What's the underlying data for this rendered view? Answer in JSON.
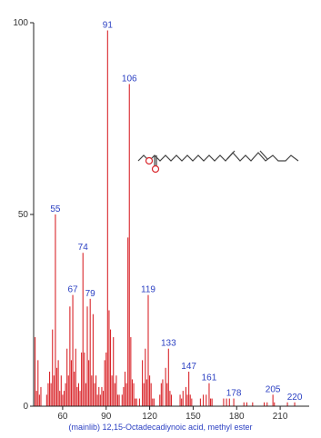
{
  "colors": {
    "peak": "#d9262b",
    "label": "#2a3fc2",
    "axis": "#222222",
    "structure": "#444444",
    "oxygen": "#d9262b"
  },
  "caption": "(mainlib) 12,15-Octadecadiynoic acid, methyl ester",
  "chart_data": {
    "type": "bar",
    "title": "",
    "xlabel": "",
    "ylabel": "",
    "xlim": [
      40,
      230
    ],
    "ylim": [
      0,
      100
    ],
    "x_ticks": [
      60,
      90,
      120,
      150,
      180,
      210
    ],
    "y_ticks": [
      0,
      50,
      100
    ],
    "peaks": [
      {
        "x": 41,
        "y": 18
      },
      {
        "x": 42,
        "y": 4
      },
      {
        "x": 43,
        "y": 12
      },
      {
        "x": 44,
        "y": 3
      },
      {
        "x": 45,
        "y": 5
      },
      {
        "x": 49,
        "y": 3
      },
      {
        "x": 50,
        "y": 6
      },
      {
        "x": 51,
        "y": 9
      },
      {
        "x": 52,
        "y": 6
      },
      {
        "x": 53,
        "y": 20
      },
      {
        "x": 54,
        "y": 8
      },
      {
        "x": 55,
        "y": 50
      },
      {
        "x": 56,
        "y": 10
      },
      {
        "x": 57,
        "y": 12
      },
      {
        "x": 58,
        "y": 4
      },
      {
        "x": 59,
        "y": 8
      },
      {
        "x": 60,
        "y": 3
      },
      {
        "x": 61,
        "y": 4
      },
      {
        "x": 62,
        "y": 6
      },
      {
        "x": 63,
        "y": 15
      },
      {
        "x": 64,
        "y": 8
      },
      {
        "x": 65,
        "y": 26
      },
      {
        "x": 66,
        "y": 12
      },
      {
        "x": 67,
        "y": 29
      },
      {
        "x": 68,
        "y": 9
      },
      {
        "x": 69,
        "y": 15
      },
      {
        "x": 70,
        "y": 5
      },
      {
        "x": 71,
        "y": 6
      },
      {
        "x": 72,
        "y": 4
      },
      {
        "x": 73,
        "y": 14
      },
      {
        "x": 74,
        "y": 40
      },
      {
        "x": 75,
        "y": 14
      },
      {
        "x": 76,
        "y": 6
      },
      {
        "x": 77,
        "y": 26
      },
      {
        "x": 78,
        "y": 12
      },
      {
        "x": 79,
        "y": 28
      },
      {
        "x": 80,
        "y": 8
      },
      {
        "x": 81,
        "y": 24
      },
      {
        "x": 82,
        "y": 6
      },
      {
        "x": 83,
        "y": 8
      },
      {
        "x": 84,
        "y": 3
      },
      {
        "x": 85,
        "y": 5
      },
      {
        "x": 86,
        "y": 3
      },
      {
        "x": 87,
        "y": 5
      },
      {
        "x": 88,
        "y": 4
      },
      {
        "x": 89,
        "y": 12
      },
      {
        "x": 90,
        "y": 14
      },
      {
        "x": 91,
        "y": 98
      },
      {
        "x": 92,
        "y": 25
      },
      {
        "x": 93,
        "y": 20
      },
      {
        "x": 94,
        "y": 8
      },
      {
        "x": 95,
        "y": 18
      },
      {
        "x": 96,
        "y": 6
      },
      {
        "x": 97,
        "y": 8
      },
      {
        "x": 98,
        "y": 3
      },
      {
        "x": 99,
        "y": 3
      },
      {
        "x": 101,
        "y": 3
      },
      {
        "x": 102,
        "y": 5
      },
      {
        "x": 103,
        "y": 9
      },
      {
        "x": 104,
        "y": 6
      },
      {
        "x": 105,
        "y": 44
      },
      {
        "x": 106,
        "y": 84
      },
      {
        "x": 107,
        "y": 18
      },
      {
        "x": 108,
        "y": 7
      },
      {
        "x": 109,
        "y": 6
      },
      {
        "x": 110,
        "y": 2
      },
      {
        "x": 111,
        "y": 2
      },
      {
        "x": 113,
        "y": 2
      },
      {
        "x": 115,
        "y": 12
      },
      {
        "x": 116,
        "y": 6
      },
      {
        "x": 117,
        "y": 15
      },
      {
        "x": 118,
        "y": 7
      },
      {
        "x": 119,
        "y": 29
      },
      {
        "x": 120,
        "y": 8
      },
      {
        "x": 121,
        "y": 6
      },
      {
        "x": 122,
        "y": 2
      },
      {
        "x": 123,
        "y": 2
      },
      {
        "x": 127,
        "y": 3
      },
      {
        "x": 128,
        "y": 6
      },
      {
        "x": 129,
        "y": 7
      },
      {
        "x": 131,
        "y": 10
      },
      {
        "x": 132,
        "y": 6
      },
      {
        "x": 133,
        "y": 15
      },
      {
        "x": 134,
        "y": 4
      },
      {
        "x": 135,
        "y": 3
      },
      {
        "x": 141,
        "y": 3
      },
      {
        "x": 142,
        "y": 2
      },
      {
        "x": 143,
        "y": 4
      },
      {
        "x": 145,
        "y": 5
      },
      {
        "x": 146,
        "y": 3
      },
      {
        "x": 147,
        "y": 9
      },
      {
        "x": 148,
        "y": 3
      },
      {
        "x": 149,
        "y": 2
      },
      {
        "x": 155,
        "y": 2
      },
      {
        "x": 157,
        "y": 3
      },
      {
        "x": 159,
        "y": 3
      },
      {
        "x": 161,
        "y": 6
      },
      {
        "x": 162,
        "y": 2
      },
      {
        "x": 163,
        "y": 2
      },
      {
        "x": 171,
        "y": 2
      },
      {
        "x": 173,
        "y": 2
      },
      {
        "x": 175,
        "y": 2
      },
      {
        "x": 178,
        "y": 2
      },
      {
        "x": 185,
        "y": 1
      },
      {
        "x": 187,
        "y": 1
      },
      {
        "x": 191,
        "y": 1
      },
      {
        "x": 199,
        "y": 1
      },
      {
        "x": 201,
        "y": 1
      },
      {
        "x": 205,
        "y": 3
      },
      {
        "x": 206,
        "y": 1
      },
      {
        "x": 215,
        "y": 1
      },
      {
        "x": 220,
        "y": 1
      }
    ],
    "peak_labels": [
      {
        "x": 55,
        "y": 50,
        "text": "55"
      },
      {
        "x": 67,
        "y": 29,
        "text": "67"
      },
      {
        "x": 74,
        "y": 40,
        "text": "74"
      },
      {
        "x": 79,
        "y": 28,
        "text": "79"
      },
      {
        "x": 91,
        "y": 98,
        "text": "91"
      },
      {
        "x": 106,
        "y": 84,
        "text": "106"
      },
      {
        "x": 119,
        "y": 29,
        "text": "119"
      },
      {
        "x": 133,
        "y": 15,
        "text": "133"
      },
      {
        "x": 147,
        "y": 9,
        "text": "147"
      },
      {
        "x": 161,
        "y": 6,
        "text": "161"
      },
      {
        "x": 178,
        "y": 2,
        "text": "178"
      },
      {
        "x": 205,
        "y": 3,
        "text": "205"
      },
      {
        "x": 220,
        "y": 1,
        "text": "220"
      }
    ]
  }
}
